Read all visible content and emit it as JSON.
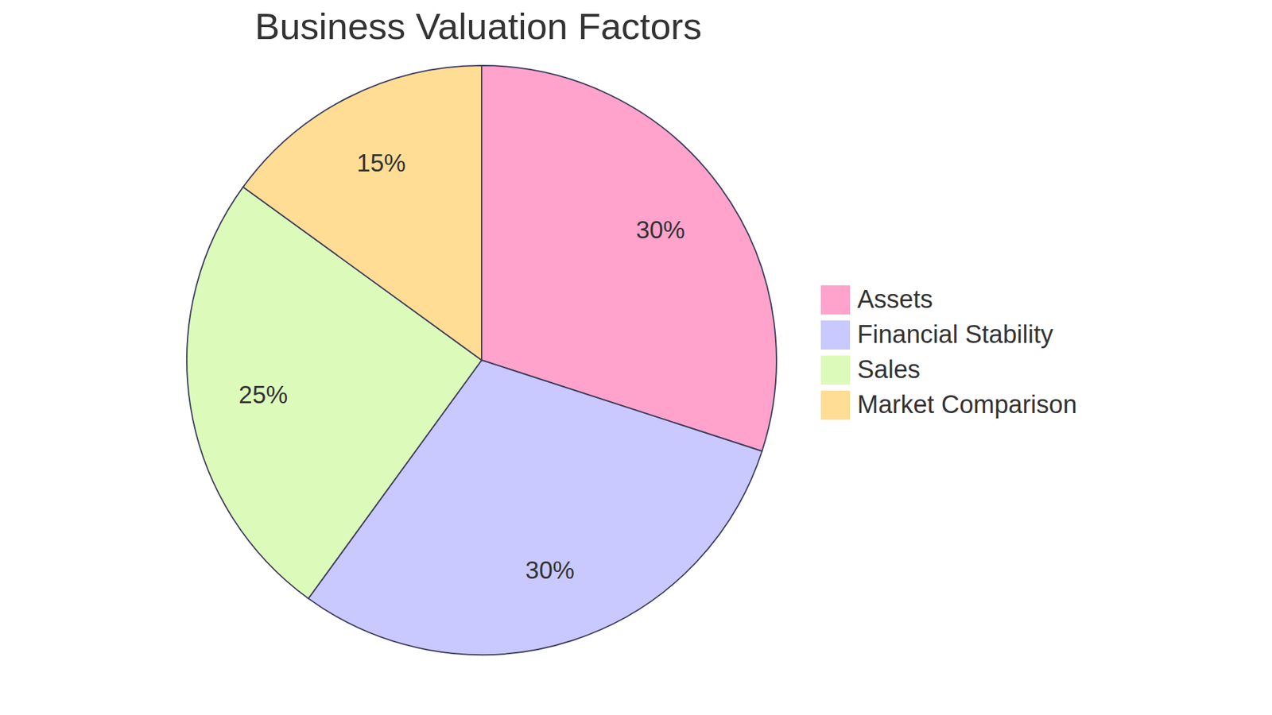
{
  "chart_data": {
    "type": "pie",
    "title": "Business Valuation Factors",
    "categories": [
      "Assets",
      "Financial Stability",
      "Sales",
      "Market Comparison"
    ],
    "values": [
      30,
      30,
      25,
      15
    ],
    "value_labels": [
      "30%",
      "30%",
      "25%",
      "15%"
    ],
    "colors": [
      "#ffa3cc",
      "#c9c9ff",
      "#dcfbbb",
      "#ffdd95"
    ],
    "data_labels": true,
    "legend": "right"
  }
}
